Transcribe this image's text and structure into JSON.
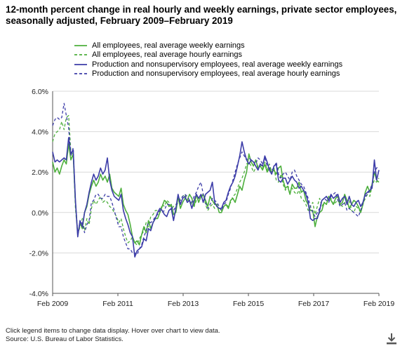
{
  "title": "12-month percent change in real hourly and weekly earnings, private sector employees, seasonally adjusted, February 2009–February 2019",
  "footer": {
    "note": "Click legend items to change data display. Hover over chart to view data.",
    "source": "Source: U.S. Bureau of Labor Statistics."
  },
  "icons": {
    "download": "download-icon"
  },
  "colors": {
    "green": "#4daf3c",
    "blue": "#3c3ca8",
    "grid": "#d9d9d9",
    "axis": "#555555"
  },
  "chart_data": {
    "type": "line",
    "title": "12-month percent change in real hourly and weekly earnings, private sector employees, seasonally adjusted, February 2009–February 2019",
    "xlabel": "",
    "ylabel": "",
    "ylim": [
      -4,
      6
    ],
    "yticks": [
      "-4.0%",
      "-2.0%",
      "0.0%",
      "2.0%",
      "4.0%",
      "6.0%"
    ],
    "xticks": [
      "Feb 2009",
      "Feb 2011",
      "Feb 2013",
      "Feb 2015",
      "Feb 2017",
      "Feb 2019"
    ],
    "x_start": "Feb 2009",
    "x_end": "Feb 2019",
    "legend_position": "top",
    "grid": "horizontal",
    "series": [
      {
        "name": "All employees, real average weekly earnings",
        "color": "#4daf3c",
        "dash": "solid",
        "values": [
          2.5,
          2.0,
          2.2,
          1.9,
          2.3,
          2.6,
          2.4,
          3.4,
          2.6,
          2.9,
          0.5,
          -1.1,
          -0.5,
          -0.8,
          0.0,
          0.3,
          0.9,
          1.3,
          1.6,
          1.3,
          1.5,
          1.9,
          1.6,
          1.8,
          1.5,
          1.9,
          1.2,
          1.0,
          0.9,
          0.8,
          1.2,
          0.4,
          0.1,
          -0.1,
          -0.6,
          -1.2,
          -1.5,
          -1.4,
          -1.6,
          -1.1,
          -0.7,
          -1.0,
          -0.4,
          -0.8,
          -0.5,
          -0.3,
          -0.3,
          0.0,
          0.3,
          0.6,
          0.5,
          0.3,
          0.4,
          -0.1,
          0.0,
          0.8,
          0.2,
          0.5,
          0.7,
          0.6,
          0.9,
          0.7,
          0.3,
          0.9,
          0.5,
          0.8,
          0.9,
          0.6,
          0.3,
          0.8,
          0.6,
          0.4,
          0.4,
          0.0,
          0.0,
          0.3,
          0.4,
          0.2,
          0.6,
          0.7,
          0.5,
          0.9,
          1.3,
          1.1,
          1.6,
          2.0,
          2.9,
          2.5,
          2.3,
          2.6,
          2.2,
          2.3,
          2.1,
          2.4,
          2.0,
          2.2,
          2.0,
          2.1,
          1.9,
          2.2,
          2.3,
          1.6,
          1.2,
          1.3,
          0.9,
          1.4,
          1.2,
          1.2,
          1.5,
          1.0,
          1.1,
          0.6,
          0.4,
          0.1,
          0.1,
          -0.7,
          -0.2,
          0.0,
          0.1,
          0.5,
          0.4,
          0.8,
          0.6,
          0.4,
          0.7,
          0.8,
          0.4,
          0.5,
          0.9,
          0.6,
          0.2,
          0.4,
          0.6,
          0.5,
          0.3,
          0.0,
          0.4,
          1.0,
          1.3,
          1.0,
          1.4,
          2.0,
          1.6,
          1.5
        ]
      },
      {
        "name": "All employees, real average hourly earnings",
        "color": "#4daf3c",
        "dash": "dashed",
        "values": [
          3.5,
          3.9,
          4.0,
          4.1,
          4.5,
          4.1,
          4.7,
          4.8,
          3.0,
          2.9,
          0.2,
          -1.1,
          -0.7,
          -0.3,
          -0.9,
          -0.3,
          -0.6,
          0.2,
          0.6,
          0.4,
          0.6,
          0.8,
          0.5,
          0.6,
          0.5,
          0.3,
          0.2,
          0.0,
          -0.2,
          -0.5,
          -0.3,
          -0.8,
          -1.2,
          -1.5,
          -1.4,
          -1.2,
          -1.5,
          -1.6,
          -1.3,
          -1.1,
          -0.9,
          -0.5,
          -0.7,
          -0.2,
          -0.1,
          0.1,
          0.1,
          0.0,
          0.4,
          0.3,
          0.6,
          0.5,
          0.2,
          0.3,
          0.4,
          0.5,
          0.7,
          0.8,
          0.9,
          0.6,
          0.6,
          0.4,
          0.3,
          0.6,
          0.7,
          0.7,
          0.9,
          0.4,
          0.1,
          0.3,
          0.4,
          0.2,
          0.3,
          0.2,
          0.1,
          0.3,
          0.4,
          0.3,
          0.5,
          0.8,
          0.9,
          1.2,
          1.5,
          1.7,
          2.0,
          2.4,
          2.5,
          2.3,
          2.0,
          2.2,
          2.3,
          2.4,
          2.2,
          2.5,
          2.1,
          2.4,
          2.0,
          2.2,
          1.6,
          1.5,
          1.9,
          1.4,
          1.1,
          1.3,
          1.2,
          1.2,
          1.0,
          0.9,
          1.1,
          0.7,
          0.6,
          0.4,
          0.1,
          0.3,
          0.5,
          -0.1,
          0.3,
          0.7,
          0.3,
          0.5,
          0.4,
          0.7,
          0.7,
          0.4,
          0.5,
          0.6,
          0.4,
          0.3,
          0.5,
          0.4,
          0.6,
          0.1,
          0.0,
          0.3,
          0.2,
          0.0,
          0.4,
          0.7,
          0.9,
          0.8,
          1.3,
          1.6,
          1.5,
          1.7
        ]
      },
      {
        "name": "Production and nonsupervisory employees, real average weekly earnings",
        "color": "#3c3ca8",
        "dash": "solid",
        "values": [
          3.0,
          2.5,
          2.6,
          2.5,
          2.6,
          2.7,
          2.6,
          3.7,
          2.9,
          3.1,
          0.6,
          -1.2,
          -0.4,
          -0.7,
          0.0,
          0.4,
          1.0,
          1.5,
          1.9,
          1.6,
          1.8,
          2.2,
          1.9,
          2.1,
          2.7,
          1.6,
          1.1,
          0.8,
          0.7,
          0.6,
          0.9,
          0.1,
          -0.3,
          -0.6,
          -1.0,
          -1.2,
          -2.2,
          -1.9,
          -1.8,
          -1.7,
          -1.3,
          -1.4,
          -0.8,
          -0.9,
          -0.5,
          -0.3,
          0.0,
          0.2,
          0.1,
          -0.1,
          -0.2,
          0.1,
          0.2,
          -0.4,
          0.2,
          0.9,
          0.4,
          0.7,
          0.8,
          0.5,
          0.6,
          0.2,
          0.6,
          0.9,
          0.7,
          0.9,
          0.5,
          0.9,
          1.0,
          1.1,
          1.5,
          0.5,
          0.3,
          0.2,
          0.2,
          0.5,
          0.6,
          1.0,
          1.3,
          1.5,
          1.8,
          2.3,
          2.8,
          3.5,
          3.0,
          2.6,
          2.4,
          2.6,
          2.5,
          2.3,
          2.1,
          2.4,
          2.3,
          2.8,
          2.5,
          2.1,
          1.9,
          2.3,
          2.4,
          1.6,
          1.5,
          1.7,
          1.7,
          1.4,
          1.6,
          1.8,
          1.6,
          1.5,
          1.2,
          1.3,
          1.1,
          0.9,
          0.5,
          -0.3,
          -0.4,
          -0.3,
          -0.3,
          0.1,
          0.6,
          0.7,
          0.8,
          0.6,
          0.9,
          0.7,
          0.8,
          0.9,
          0.5,
          0.7,
          0.8,
          0.4,
          0.8,
          0.4,
          0.3,
          0.5,
          0.6,
          0.3,
          0.5,
          0.9,
          1.0,
          1.1,
          1.2,
          2.6,
          1.6,
          2.1
        ]
      },
      {
        "name": "Production and nonsupervisory employees, real average hourly earnings",
        "color": "#3c3ca8",
        "dash": "dashed",
        "values": [
          4.3,
          4.6,
          4.7,
          4.6,
          4.7,
          5.4,
          4.8,
          4.2,
          2.8,
          3.2,
          0.5,
          -1.0,
          -0.6,
          -0.5,
          -1.0,
          -0.6,
          -0.4,
          0.5,
          0.6,
          0.9,
          0.9,
          0.7,
          0.7,
          0.9,
          0.8,
          0.8,
          0.5,
          0.1,
          -0.3,
          -0.7,
          -0.7,
          -1.2,
          -1.5,
          -1.8,
          -1.8,
          -2.0,
          -2.0,
          -2.1,
          -1.8,
          -1.6,
          -1.2,
          -0.9,
          -0.5,
          -0.5,
          -0.4,
          -0.2,
          -0.1,
          0.1,
          0.0,
          0.1,
          0.4,
          0.4,
          0.3,
          0.1,
          0.3,
          0.5,
          0.6,
          0.8,
          0.9,
          0.8,
          0.6,
          0.5,
          0.8,
          1.0,
          1.3,
          1.5,
          0.9,
          0.5,
          0.2,
          0.4,
          0.7,
          0.6,
          0.5,
          0.3,
          0.1,
          0.4,
          0.5,
          0.9,
          1.2,
          1.6,
          2.0,
          2.4,
          2.7,
          3.0,
          2.8,
          2.6,
          2.7,
          2.6,
          2.5,
          2.4,
          2.7,
          2.6,
          2.4,
          2.7,
          2.3,
          2.2,
          2.1,
          2.2,
          2.5,
          1.9,
          1.7,
          1.9,
          2.0,
          1.8,
          1.6,
          2.0,
          2.1,
          1.8,
          1.6,
          1.4,
          1.3,
          1.0,
          0.7,
          0.3,
          0.0,
          -0.2,
          0.0,
          0.2,
          0.6,
          0.7,
          0.6,
          0.5,
          0.8,
          0.9,
          1.0,
          0.6,
          0.3,
          0.4,
          0.5,
          0.1,
          0.2,
          0.1,
          0.0,
          -0.1,
          -0.2,
          0.1,
          0.5,
          0.8,
          0.9,
          1.1,
          1.4,
          2.0,
          2.2,
          2.3
        ]
      }
    ]
  }
}
